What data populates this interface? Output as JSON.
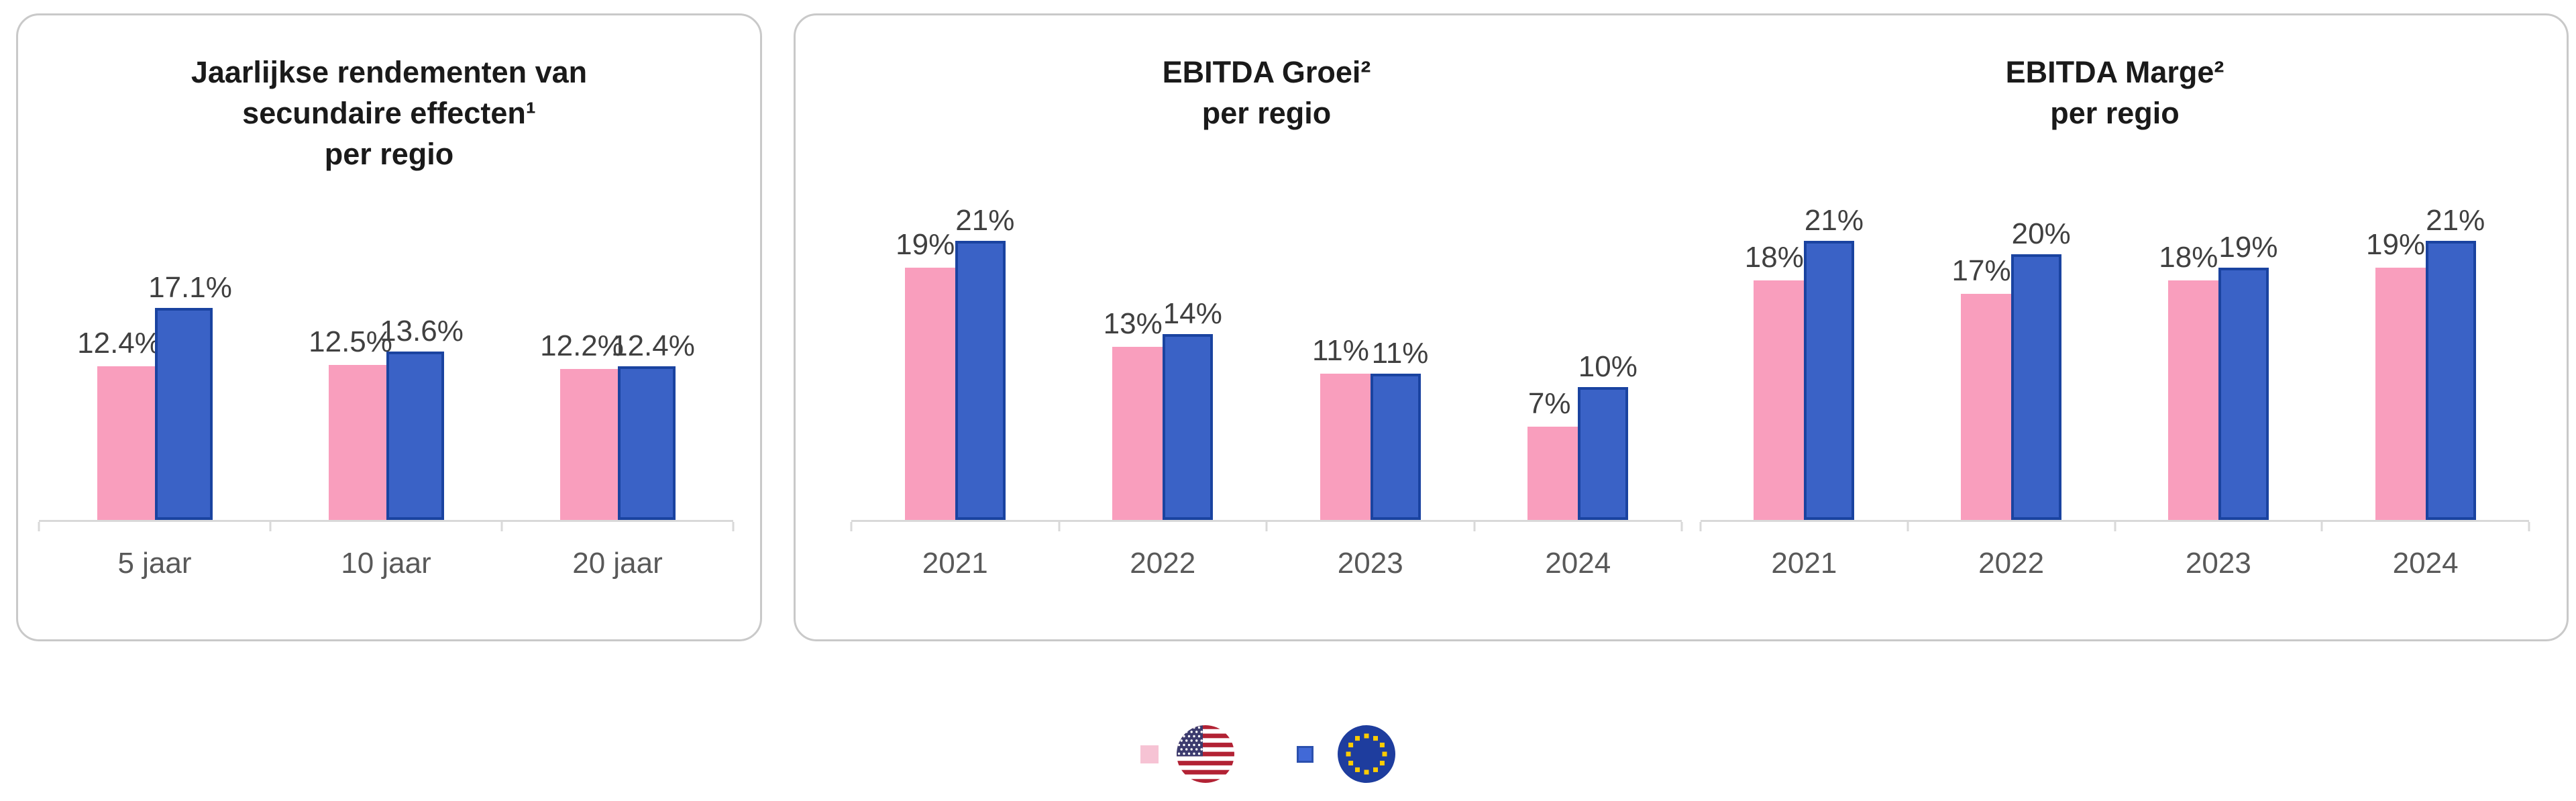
{
  "chart_data": [
    {
      "id": "secondary-returns",
      "type": "bar",
      "title_lines": [
        "Jaarlijkse rendementen van",
        "secundaire effecten¹",
        "per regio"
      ],
      "categories": [
        "5 jaar",
        "10 jaar",
        "20 jaar"
      ],
      "series": [
        {
          "name": "US",
          "values": [
            12.4,
            12.5,
            12.2
          ],
          "labels": [
            "12.4%",
            "12.5%",
            "12.2%"
          ]
        },
        {
          "name": "EU",
          "values": [
            17.1,
            13.6,
            12.4
          ],
          "labels": [
            "17.1%",
            "13.6%",
            "12.4%"
          ]
        }
      ],
      "ylim": [
        0,
        17.1
      ],
      "grid": false,
      "legend_position": "bottom-shared"
    },
    {
      "id": "ebitda-groei",
      "type": "bar",
      "title_lines": [
        "EBITDA Groei²",
        "per regio"
      ],
      "categories": [
        "2021",
        "2022",
        "2023",
        "2024"
      ],
      "series": [
        {
          "name": "US",
          "values": [
            19,
            13,
            11,
            7
          ],
          "labels": [
            "19%",
            "13%",
            "11%",
            "7%"
          ]
        },
        {
          "name": "EU",
          "values": [
            21,
            14,
            11,
            10
          ],
          "labels": [
            "21%",
            "14%",
            "11%",
            "10%"
          ]
        }
      ],
      "ylim": [
        0,
        21
      ],
      "grid": false,
      "legend_position": "bottom-shared"
    },
    {
      "id": "ebitda-marge",
      "type": "bar",
      "title_lines": [
        "EBITDA Marge²",
        "per regio"
      ],
      "categories": [
        "2021",
        "2022",
        "2023",
        "2024"
      ],
      "series": [
        {
          "name": "US",
          "values": [
            18,
            17,
            18,
            19
          ],
          "labels": [
            "18%",
            "17%",
            "18%",
            "19%"
          ]
        },
        {
          "name": "EU",
          "values": [
            21,
            20,
            19,
            21
          ],
          "labels": [
            "21%",
            "20%",
            "19%",
            "21%"
          ]
        }
      ],
      "ylim": [
        0,
        21
      ],
      "grid": false,
      "legend_position": "bottom-shared"
    }
  ],
  "legend": {
    "items": [
      {
        "series": "US",
        "flag": "us-flag",
        "swatch_color": "#F6C3D4"
      },
      {
        "series": "EU",
        "flag": "eu-flag",
        "swatch_color": "#4169D7",
        "swatch_border": "#2B50AE"
      }
    ]
  },
  "colors": {
    "us_bar": "#F99EBD",
    "eu_bar": "#3A62C6",
    "eu_bar_border": "#1A43A0",
    "axis_line": "#D9D9D9",
    "data_label": "#404040",
    "category_label": "#595959",
    "panel_border": "#C9C9C9",
    "us_flag_red": "#B22234",
    "us_flag_canton": "#3C3B6E",
    "eu_flag_blue": "#1E3D9E",
    "eu_flag_star": "#FFCC00"
  }
}
